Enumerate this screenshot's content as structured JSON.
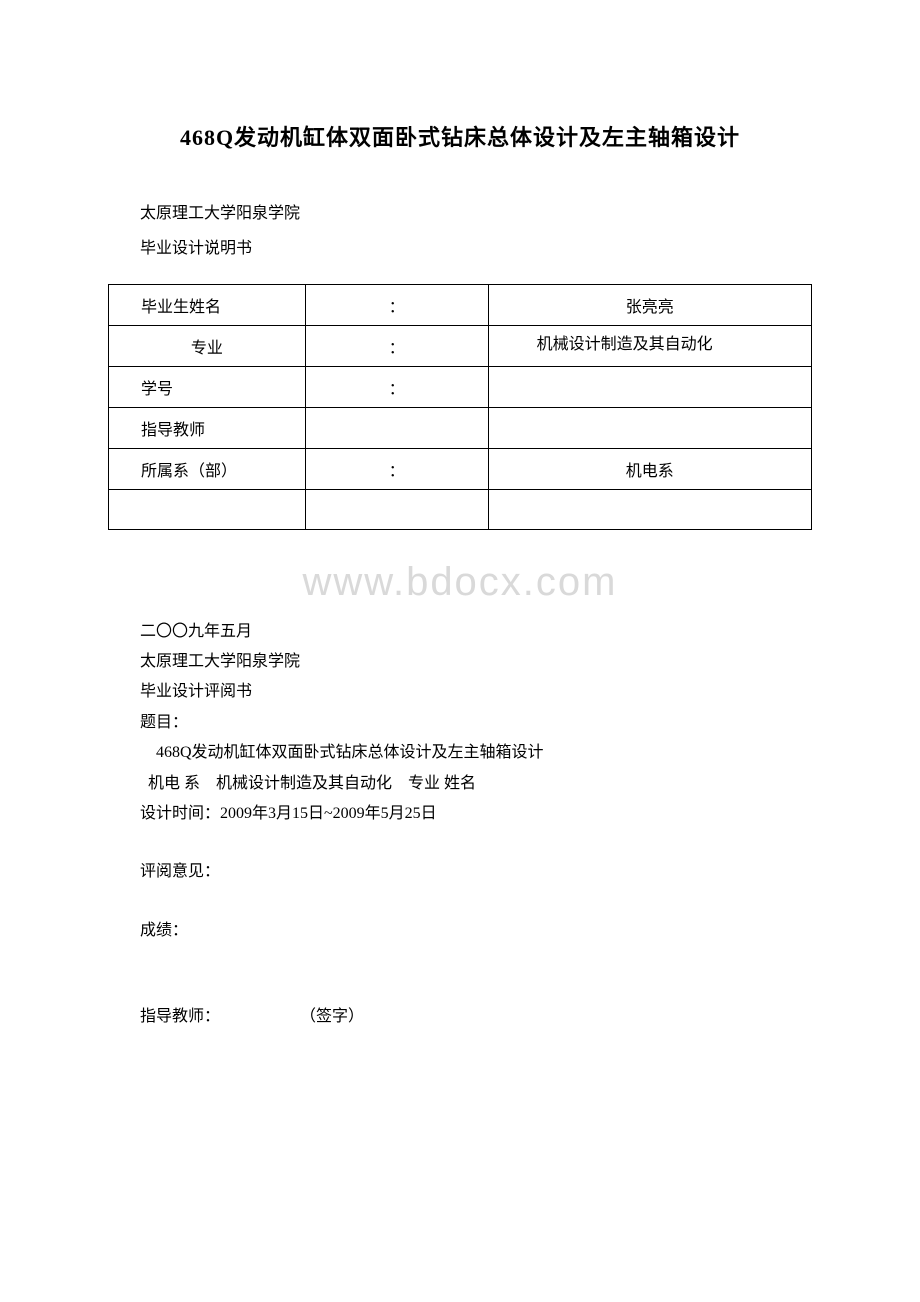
{
  "title": "468Q发动机缸体双面卧式钻床总体设计及左主轴箱设计",
  "university": "太原理工大学阳泉学院",
  "doc_type_1": "毕业设计说明书",
  "table": {
    "rows": [
      {
        "label": "毕业生姓名",
        "colon": "：",
        "value": "张亮亮"
      },
      {
        "label": "专业",
        "colon": "：",
        "value": "机械设计制造及其自动化"
      },
      {
        "label": "学号",
        "colon": "：",
        "value": ""
      },
      {
        "label": "指导教师",
        "colon": "",
        "value": ""
      },
      {
        "label": "所属系（部）",
        "colon": "：",
        "value": "机电系"
      },
      {
        "label": "",
        "colon": "",
        "value": ""
      }
    ]
  },
  "watermark": "www.bdocx.com",
  "date_cn": "二〇〇九年五月",
  "university_2": "太原理工大学阳泉学院",
  "doc_type_2": "毕业设计评阅书",
  "topic_label": "题目：",
  "topic_value": "468Q发动机缸体双面卧式钻床总体设计及左主轴箱设计",
  "dept_line": "机电 系　机械设计制造及其自动化　专业 姓名",
  "design_time": "设计时间：2009年3月15日~2009年5月25日",
  "review_label": "评阅意见：",
  "grade_label": "成绩：",
  "advisor_line": "指导教师：　　　　　　（签字）",
  "colors": {
    "text": "#000000",
    "background": "#ffffff",
    "watermark": "#d9d9d9",
    "border": "#000000"
  },
  "fonts": {
    "body_family": "SimSun / 宋体",
    "title_size_pt": 16,
    "body_size_pt": 12,
    "watermark_size_pt": 30
  }
}
